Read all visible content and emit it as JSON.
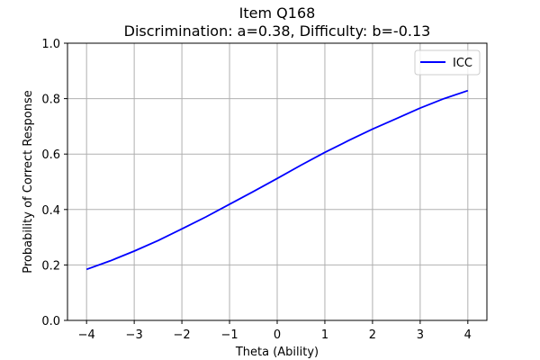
{
  "chart_data": {
    "type": "line",
    "title": "Item Q168",
    "subtitle": "Discrimination: a=0.38, Difficulty: b=-0.13",
    "xlabel": "Theta (Ability)",
    "ylabel": "Probability of Correct Response",
    "xlim": [
      -4.4,
      4.4
    ],
    "ylim": [
      0.0,
      1.0
    ],
    "x_ticks": [
      -4,
      -3,
      -2,
      -1,
      0,
      1,
      2,
      3,
      4
    ],
    "x_tick_labels": [
      "−4",
      "−3",
      "−2",
      "−1",
      "0",
      "1",
      "2",
      "3",
      "4"
    ],
    "y_ticks": [
      0.0,
      0.2,
      0.4,
      0.6,
      0.8,
      1.0
    ],
    "y_tick_labels": [
      "0.0",
      "0.2",
      "0.4",
      "0.6",
      "0.8",
      "1.0"
    ],
    "grid": true,
    "legend_position": "top-right",
    "series": [
      {
        "name": "ICC",
        "color": "#0000ff",
        "x": [
          -4,
          -3.5,
          -3,
          -2.5,
          -2,
          -1.5,
          -1,
          -0.5,
          0,
          0.5,
          1,
          1.5,
          2,
          2.5,
          3,
          3.5,
          4
        ],
        "y": [
          0.184,
          0.215,
          0.25,
          0.288,
          0.33,
          0.373,
          0.419,
          0.465,
          0.512,
          0.56,
          0.606,
          0.649,
          0.69,
          0.728,
          0.766,
          0.8,
          0.829
        ]
      }
    ]
  }
}
